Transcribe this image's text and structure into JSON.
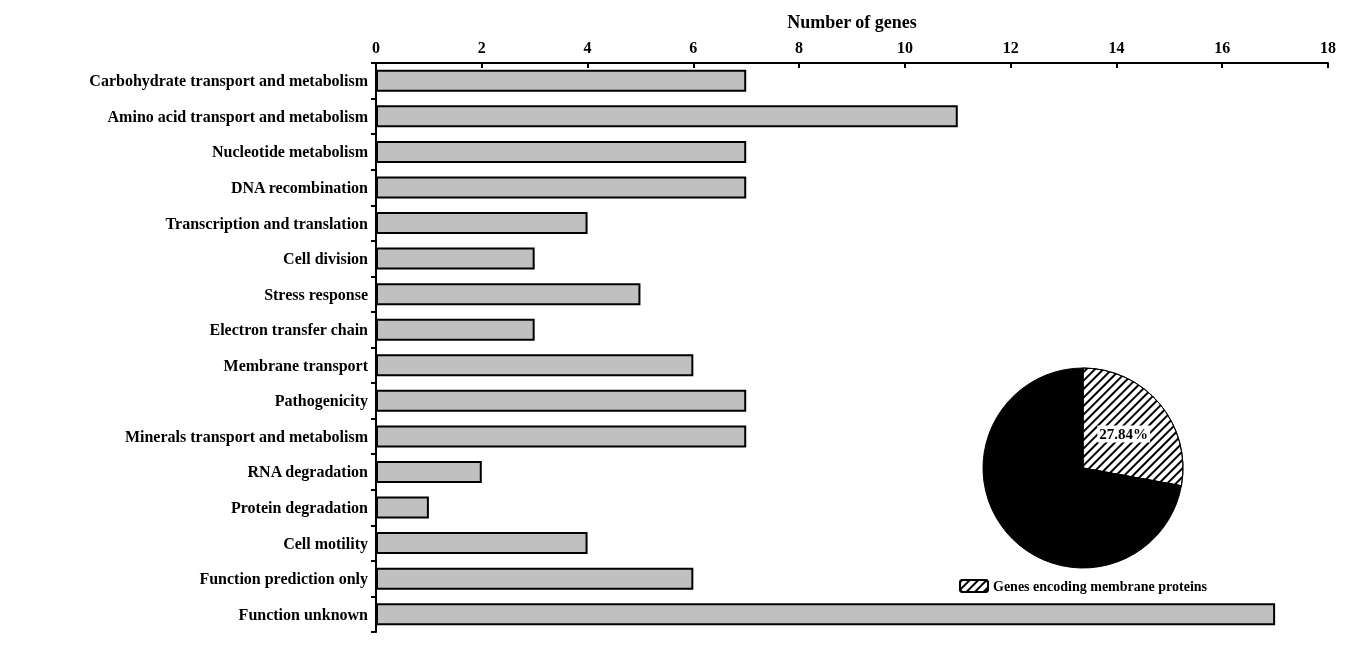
{
  "chart_data": [
    {
      "type": "bar",
      "orientation": "horizontal",
      "xlabel": "Number of genes",
      "categories": [
        "Carbohydrate transport and metabolism",
        "Amino acid transport and metabolism",
        "Nucleotide metabolism",
        "DNA recombination",
        "Transcription and translation",
        "Cell division",
        "Stress response",
        "Electron transfer chain",
        "Membrane transport",
        "Pathogenicity",
        "Minerals transport and metabolism",
        "RNA degradation",
        "Protein degradation",
        "Cell motility",
        "Function prediction only",
        "Function unknown"
      ],
      "values": [
        7,
        11,
        7,
        7,
        4,
        3,
        5,
        3,
        6,
        7,
        7,
        2,
        1,
        4,
        6,
        17
      ],
      "color": "#c0c0c0",
      "xlim": [
        0,
        18
      ],
      "xticks": [
        0,
        2,
        4,
        6,
        8,
        10,
        12,
        14,
        16,
        18
      ],
      "grid": false,
      "legend": false
    },
    {
      "type": "pie",
      "categories": [
        "Genes encoding membrane proteins",
        null
      ],
      "values": [
        27.84,
        72.16
      ],
      "colors": [
        "#ffffff",
        "#000000"
      ],
      "value_labels": [
        "27.84%",
        null
      ],
      "legend": "bottom"
    }
  ]
}
